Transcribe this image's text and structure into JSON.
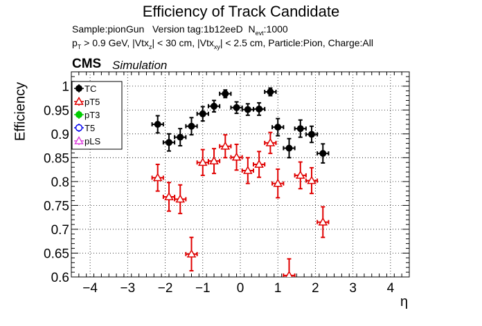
{
  "title": "Efficiency of Track Candidate",
  "subtitle": {
    "line1_sample": "Sample:pionGun",
    "line1_version": "Version tag:1b12eeD",
    "line1_nevt_label": "N",
    "line1_nevt_sub": "evt",
    "line1_nevt_value": ":1000",
    "line2_pt": "p",
    "line2_pt_sub": "T",
    "line2_pt_cut": " > 0.9 GeV, |Vtx",
    "line2_vtxz_sub": "z",
    "line2_mid": "| < 30 cm, |Vtx",
    "line2_vtxxy_sub": "xy",
    "line2_end": "| < 2.5 cm, Particle:Pion, Charge:All"
  },
  "cms_label": "CMS",
  "simulation_label": "Simulation",
  "chart_data": {
    "type": "scatter",
    "xlabel": "η",
    "ylabel": "Efficiency",
    "xlim": [
      -4.5,
      4.5
    ],
    "ylim": [
      0.6,
      1.03
    ],
    "grid": true,
    "legend_placement": "top-left",
    "xticks": [
      -4,
      -3,
      -2,
      -1,
      0,
      1,
      2,
      3,
      4
    ],
    "xtick_labels": [
      "−4",
      "−3",
      "−2",
      "−1",
      "0",
      "1",
      "2",
      "3",
      "4"
    ],
    "yticks": [
      0.6,
      0.65,
      0.7,
      0.75,
      0.8,
      0.85,
      0.9,
      0.95,
      1.0
    ],
    "ytick_labels": [
      "0.6",
      "0.65",
      "0.7",
      "0.75",
      "0.8",
      "0.85",
      "0.9",
      "0.95",
      "1"
    ],
    "series": [
      {
        "name": "TC",
        "color": "#000000",
        "marker": "filled-circle",
        "x": [
          -2.2,
          -1.9,
          -1.6,
          -1.3,
          -1.0,
          -0.7,
          -0.4,
          -0.1,
          0.2,
          0.5,
          0.8,
          1.0,
          1.3,
          1.6,
          1.9,
          2.2
        ],
        "y": [
          0.92,
          0.882,
          0.893,
          0.916,
          0.942,
          0.958,
          0.984,
          0.955,
          0.951,
          0.952,
          0.988,
          0.914,
          0.87,
          0.911,
          0.899,
          0.859
        ],
        "yerr": [
          0.018,
          0.018,
          0.018,
          0.018,
          0.015,
          0.012,
          0.008,
          0.012,
          0.012,
          0.013,
          0.008,
          0.018,
          0.02,
          0.018,
          0.017,
          0.02
        ]
      },
      {
        "name": "pT5",
        "color": "#e00000",
        "marker": "open-triangle",
        "x": [
          -2.2,
          -1.9,
          -1.6,
          -1.3,
          -1.0,
          -0.7,
          -0.4,
          -0.1,
          0.2,
          0.5,
          0.8,
          1.0,
          1.3,
          1.6,
          1.9,
          2.2
        ],
        "y": [
          0.808,
          0.768,
          0.763,
          0.648,
          0.84,
          0.843,
          0.874,
          0.851,
          0.823,
          0.836,
          0.881,
          0.796,
          0.603,
          0.813,
          0.802,
          0.715
        ],
        "yerr": [
          0.028,
          0.03,
          0.03,
          0.035,
          0.027,
          0.026,
          0.024,
          0.027,
          0.027,
          0.027,
          0.022,
          0.03,
          0.035,
          0.028,
          0.027,
          0.032
        ]
      },
      {
        "name": "pT3",
        "color": "#00cc00",
        "marker": "filled-circle",
        "x": [],
        "y": [],
        "yerr": []
      },
      {
        "name": "T5",
        "color": "#0000ee",
        "marker": "open-circle",
        "x": [],
        "y": [],
        "yerr": []
      },
      {
        "name": "pLS",
        "color": "#dd44dd",
        "marker": "open-triangle",
        "x": [],
        "y": [],
        "yerr": []
      }
    ]
  }
}
